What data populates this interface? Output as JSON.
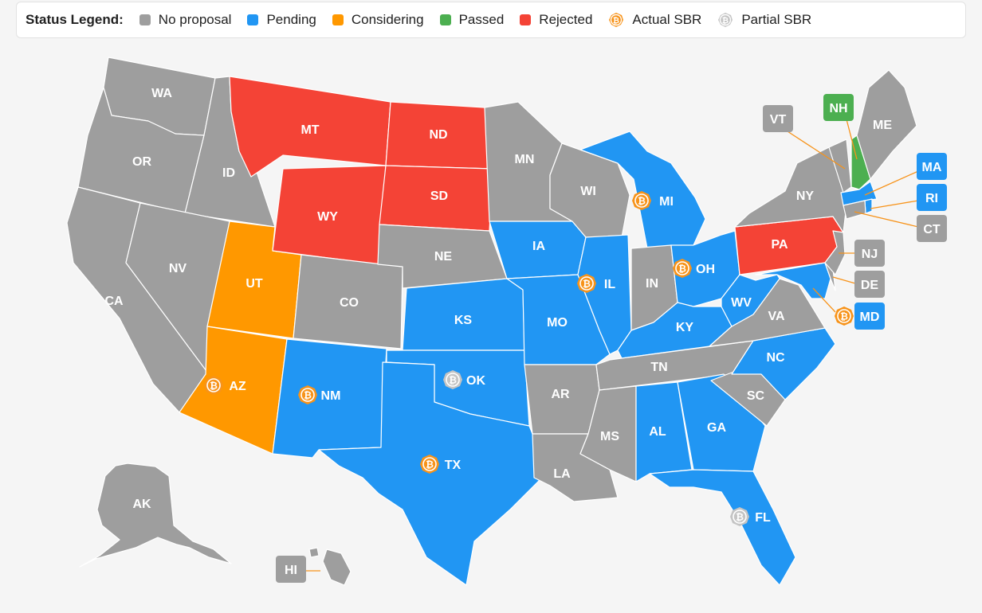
{
  "legend": {
    "title": "Status Legend:",
    "items": [
      {
        "key": "none",
        "label": "No proposal",
        "color": "#9e9e9e"
      },
      {
        "key": "pending",
        "label": "Pending",
        "color": "#2196f3"
      },
      {
        "key": "considering",
        "label": "Considering",
        "color": "#ff9800"
      },
      {
        "key": "passed",
        "label": "Passed",
        "color": "#4caf50"
      },
      {
        "key": "rejected",
        "label": "Rejected",
        "color": "#f44336"
      }
    ],
    "markers": [
      {
        "key": "actual",
        "label": "Actual SBR",
        "icon": "bitcoin-icon-orange"
      },
      {
        "key": "partial",
        "label": "Partial SBR",
        "icon": "bitcoin-icon-gray"
      }
    ]
  },
  "colors": {
    "none": "#9e9e9e",
    "pending": "#2196f3",
    "considering": "#ff9800",
    "passed": "#4caf50",
    "rejected": "#f44336",
    "actual_marker": "#f7931a",
    "partial_marker": "#c4c4c4",
    "leader": "#f7931a"
  },
  "states": {
    "WA": {
      "label": "WA",
      "status": "none"
    },
    "OR": {
      "label": "OR",
      "status": "none"
    },
    "CA": {
      "label": "CA",
      "status": "none"
    },
    "ID": {
      "label": "ID",
      "status": "none"
    },
    "NV": {
      "label": "NV",
      "status": "none"
    },
    "MT": {
      "label": "MT",
      "status": "rejected"
    },
    "WY": {
      "label": "WY",
      "status": "rejected"
    },
    "UT": {
      "label": "UT",
      "status": "considering"
    },
    "AZ": {
      "label": "AZ",
      "status": "considering",
      "marker": "actual"
    },
    "CO": {
      "label": "CO",
      "status": "none"
    },
    "NM": {
      "label": "NM",
      "status": "pending",
      "marker": "actual"
    },
    "ND": {
      "label": "ND",
      "status": "rejected"
    },
    "SD": {
      "label": "SD",
      "status": "rejected"
    },
    "NE": {
      "label": "NE",
      "status": "none"
    },
    "KS": {
      "label": "KS",
      "status": "pending"
    },
    "OK": {
      "label": "OK",
      "status": "pending",
      "marker": "partial"
    },
    "TX": {
      "label": "TX",
      "status": "pending",
      "marker": "actual"
    },
    "MN": {
      "label": "MN",
      "status": "none"
    },
    "IA": {
      "label": "IA",
      "status": "pending"
    },
    "MO": {
      "label": "MO",
      "status": "pending"
    },
    "AR": {
      "label": "AR",
      "status": "none"
    },
    "LA": {
      "label": "LA",
      "status": "none"
    },
    "WI": {
      "label": "WI",
      "status": "none"
    },
    "IL": {
      "label": "IL",
      "status": "pending",
      "marker": "actual"
    },
    "MI": {
      "label": "MI",
      "status": "pending",
      "marker": "actual"
    },
    "IN": {
      "label": "IN",
      "status": "none"
    },
    "OH": {
      "label": "OH",
      "status": "pending",
      "marker": "actual"
    },
    "KY": {
      "label": "KY",
      "status": "pending"
    },
    "TN": {
      "label": "TN",
      "status": "none"
    },
    "MS": {
      "label": "MS",
      "status": "none"
    },
    "AL": {
      "label": "AL",
      "status": "pending"
    },
    "GA": {
      "label": "GA",
      "status": "pending"
    },
    "FL": {
      "label": "FL",
      "status": "pending",
      "marker": "partial"
    },
    "SC": {
      "label": "SC",
      "status": "none"
    },
    "NC": {
      "label": "NC",
      "status": "pending"
    },
    "VA": {
      "label": "VA",
      "status": "none"
    },
    "WV": {
      "label": "WV",
      "status": "pending"
    },
    "PA": {
      "label": "PA",
      "status": "rejected"
    },
    "NY": {
      "label": "NY",
      "status": "none"
    },
    "ME": {
      "label": "ME",
      "status": "none"
    },
    "AK": {
      "label": "AK",
      "status": "none"
    },
    "VT": {
      "label": "VT",
      "status": "none"
    },
    "NH": {
      "label": "NH",
      "status": "passed"
    },
    "MA": {
      "label": "MA",
      "status": "pending"
    },
    "RI": {
      "label": "RI",
      "status": "pending"
    },
    "CT": {
      "label": "CT",
      "status": "none"
    },
    "NJ": {
      "label": "NJ",
      "status": "none"
    },
    "DE": {
      "label": "DE",
      "status": "none"
    },
    "MD": {
      "label": "MD",
      "status": "pending",
      "marker": "actual"
    },
    "HI": {
      "label": "HI",
      "status": "none"
    }
  }
}
